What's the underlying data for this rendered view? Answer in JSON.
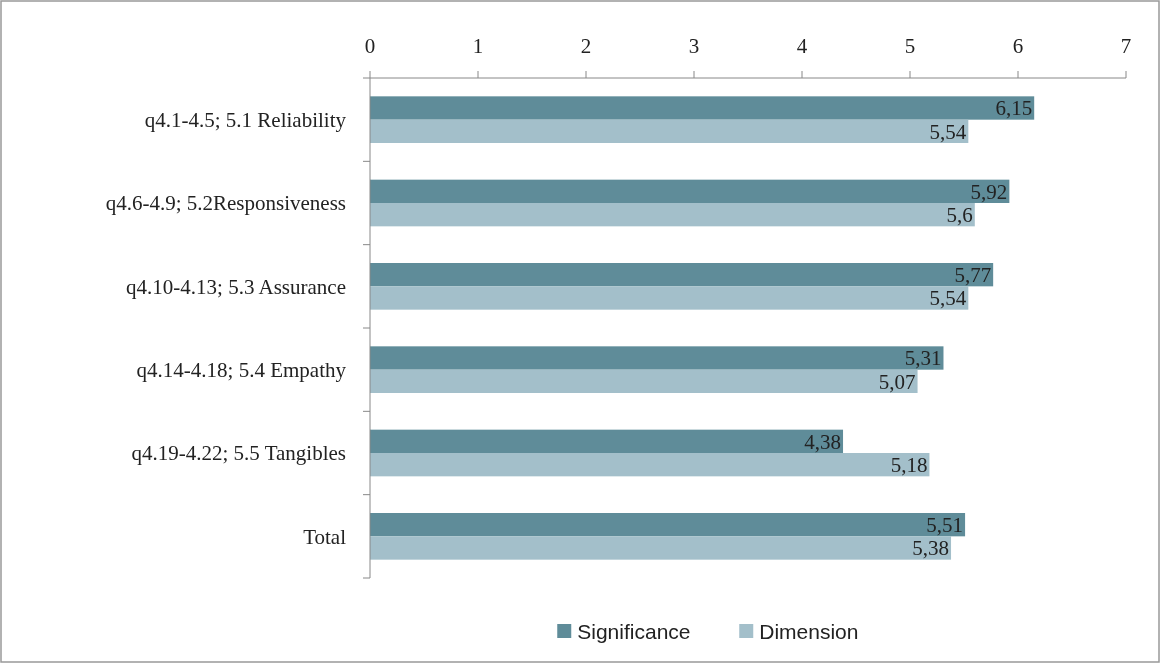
{
  "chart_data": {
    "type": "bar",
    "orientation": "horizontal",
    "categories": [
      "q4.1-4.5; 5.1 Reliability",
      "q4.6-4.9; 5.2Responsiveness",
      "q4.10-4.13; 5.3 Assurance",
      "q4.14-4.18; 5.4 Empathy",
      "q4.19-4.22; 5.5 Tangibles",
      "Total"
    ],
    "series": [
      {
        "name": "Significance",
        "color": "#5f8c99",
        "values": [
          6.15,
          5.92,
          5.77,
          5.31,
          4.38,
          5.51
        ],
        "value_labels": [
          "6,15",
          "5,92",
          "5,77",
          "5,31",
          "4,38",
          "5,51"
        ]
      },
      {
        "name": "Dimension",
        "color": "#a3bfca",
        "values": [
          5.54,
          5.6,
          5.54,
          5.07,
          5.18,
          5.38
        ],
        "value_labels": [
          "5,54",
          "5,6",
          "5,54",
          "5,07",
          "5,18",
          "5,38"
        ]
      }
    ],
    "xlim": [
      0,
      7
    ],
    "xticks": [
      0,
      1,
      2,
      3,
      4,
      5,
      6,
      7
    ],
    "grid": false,
    "legend": "bottom"
  }
}
